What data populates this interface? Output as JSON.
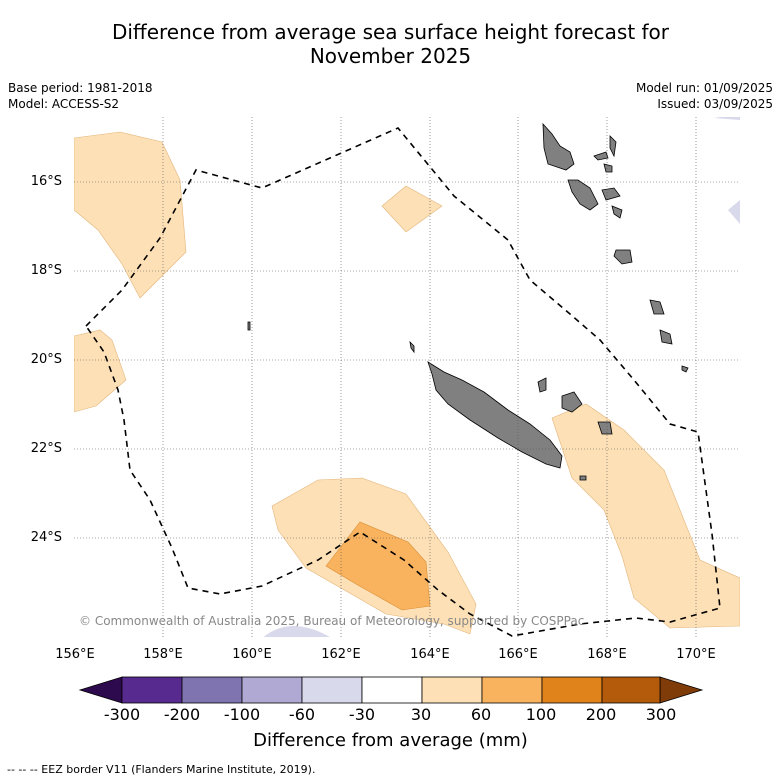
{
  "title_line1": "Difference from average sea surface height forecast for",
  "title_line2": "November 2025",
  "base_period": "Base period: 1981-2018",
  "model": "Model: ACCESS-S2",
  "model_run": "Model run: 01/09/2025",
  "issued": "Issued: 03/09/2025",
  "lat_labels": [
    "16°S",
    "18°S",
    "20°S",
    "22°S",
    "24°S"
  ],
  "lon_labels": [
    "156°E",
    "158°E",
    "160°E",
    "162°E",
    "164°E",
    "166°E",
    "168°E",
    "170°E"
  ],
  "copyright": "© Commonwealth of Australia 2025, Bureau of Meteorology, supported by COSPPac",
  "colorbar": {
    "ticks": [
      "-300",
      "-200",
      "-100",
      "-60",
      "-30",
      "30",
      "60",
      "100",
      "200",
      "300"
    ],
    "colors": [
      "#562a8e",
      "#7f73b0",
      "#b0a9d3",
      "#d9d9ec",
      "#ffffff",
      "#fde0b6",
      "#f9b35e",
      "#e0831a",
      "#b35a0b"
    ],
    "under_color": "#2d0a4e",
    "over_color": "#7f3b08",
    "title": "Difference from average (mm)"
  },
  "legend_note": "--  --  -- EEZ border V11 (Flanders Marine Institute, 2019).",
  "map": {
    "lon_range": [
      156,
      171
    ],
    "lat_range": [
      -26.2,
      -14.5
    ],
    "land_color": "#808080",
    "light_anomaly_color": "#fde0b6",
    "medium_anomaly_color": "#f9b35e",
    "negative_anomaly_color": "#d9d9ec"
  }
}
